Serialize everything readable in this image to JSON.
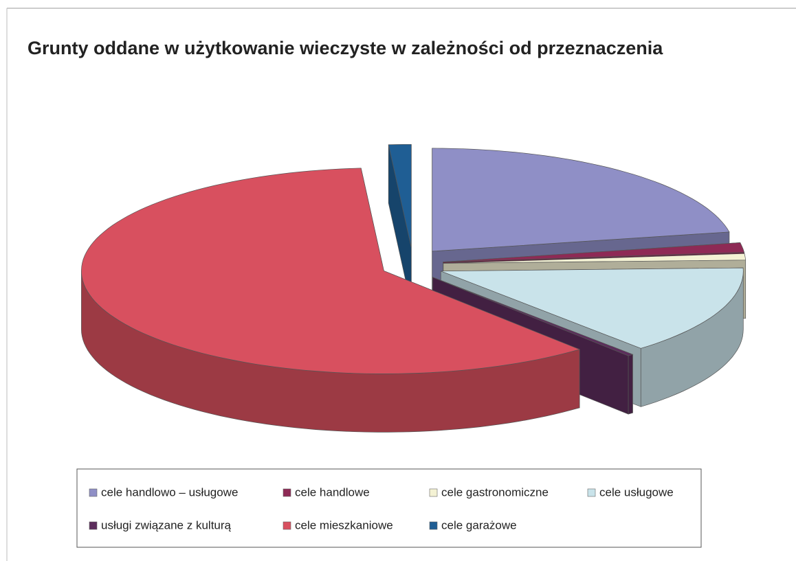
{
  "chart_data": {
    "type": "pie3d",
    "title": "Grunty oddane w użytkowanie wieczyste w zależności od przeznaczenia",
    "categories": [
      "cele handlowo – usługowe",
      "cele handlowe",
      "cele gastronomiczne",
      "cele usługowe",
      "usługi związane z kulturą",
      "cele mieszkaniowe",
      "cele garażowe"
    ],
    "values": [
      22,
      1.5,
      1,
      14,
      0.3,
      60,
      1.2
    ],
    "colors": [
      "#8f8fc6",
      "#8e2a55",
      "#f4f2d4",
      "#c9e3ea",
      "#5c2d5c",
      "#d8505f",
      "#1f5e94"
    ]
  }
}
